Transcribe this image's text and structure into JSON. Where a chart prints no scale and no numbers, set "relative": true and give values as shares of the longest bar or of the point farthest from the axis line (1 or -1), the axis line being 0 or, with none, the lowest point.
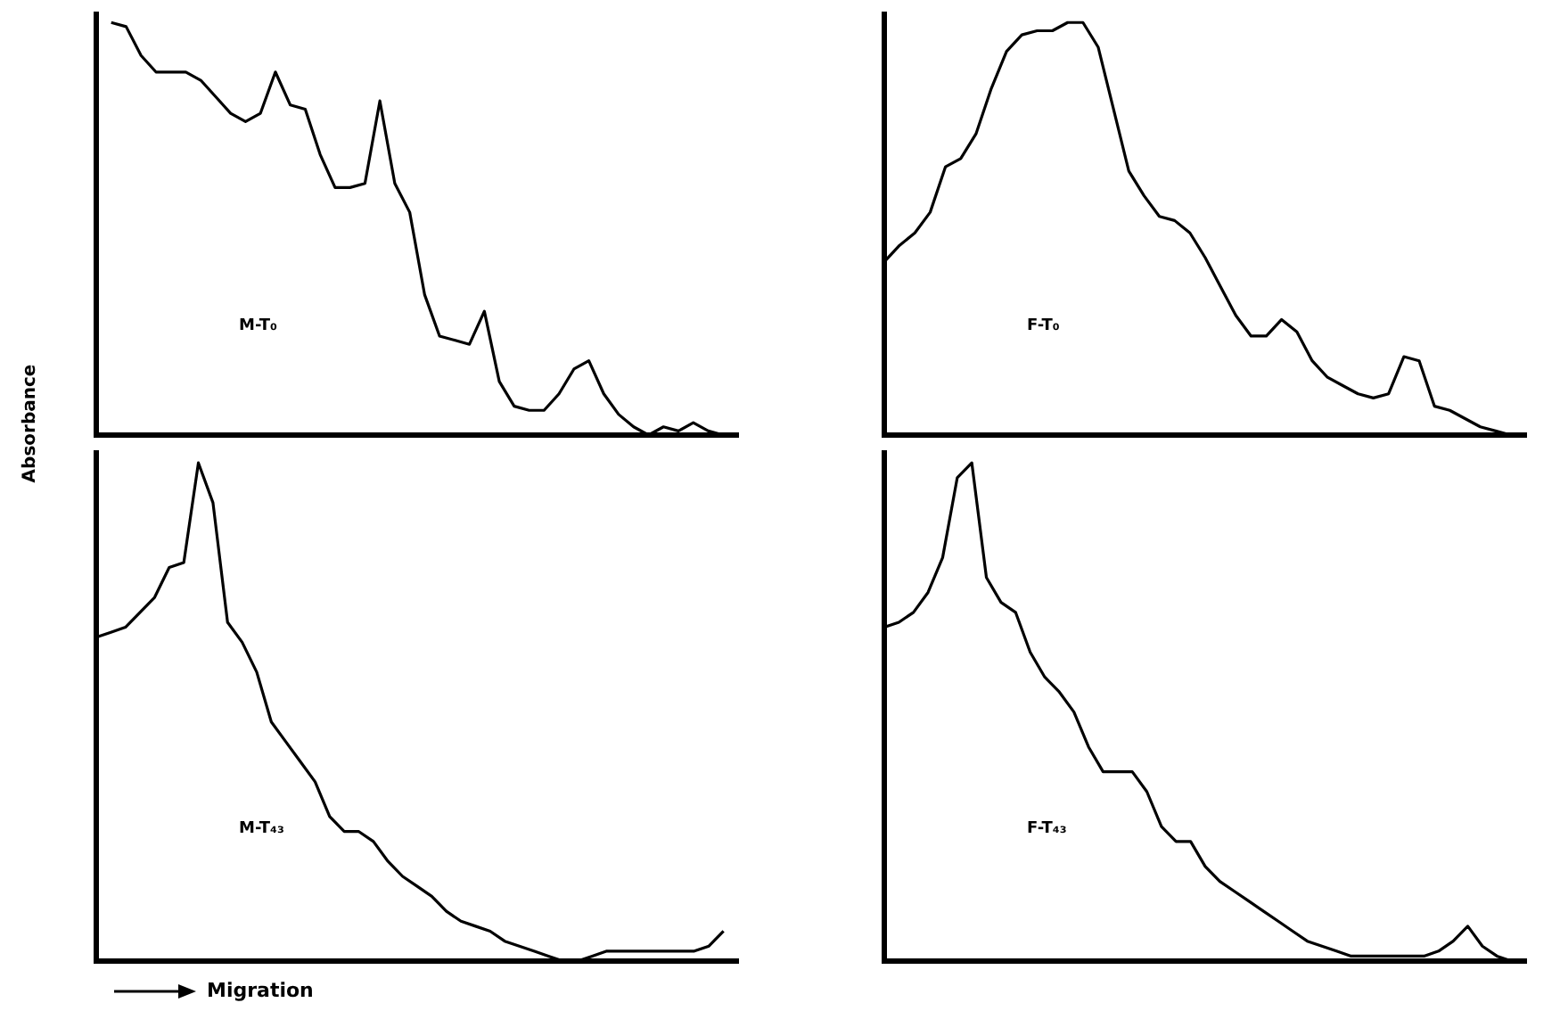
{
  "chart_data": [
    {
      "type": "line",
      "relative": true,
      "ylabel": "Absorbance",
      "tick_labels": false,
      "legend": false,
      "marker": "none",
      "annotations": [
        "M-T₀"
      ],
      "categories": [
        null,
        null,
        null,
        null,
        null,
        null,
        null,
        null,
        null,
        null,
        null,
        null,
        null,
        null,
        null,
        null,
        null,
        null,
        null,
        null,
        null,
        null,
        null,
        null,
        null,
        null,
        null,
        null,
        null,
        null,
        null,
        null,
        null,
        null,
        null,
        null,
        null,
        null,
        null,
        null,
        null,
        null,
        null,
        null
      ],
      "series": [
        {
          "color": "#000000",
          "values": [
            null,
            1.0,
            0.99,
            0.92,
            0.88,
            0.88,
            0.88,
            0.86,
            0.82,
            0.78,
            0.76,
            0.78,
            0.88,
            0.8,
            0.79,
            0.68,
            0.6,
            0.6,
            0.61,
            0.81,
            0.61,
            0.54,
            0.34,
            0.24,
            0.23,
            0.22,
            0.3,
            0.13,
            0.07,
            0.06,
            0.06,
            0.1,
            0.16,
            0.18,
            0.1,
            0.05,
            0.02,
            0.0,
            0.02,
            0.01,
            0.03,
            0.01,
            0.0,
            0
          ]
        }
      ]
    },
    {
      "type": "line",
      "relative": true,
      "tick_labels": false,
      "legend": false,
      "marker": "none",
      "annotations": [
        "F-T₀"
      ],
      "categories": [
        null,
        null,
        null,
        null,
        null,
        null,
        null,
        null,
        null,
        null,
        null,
        null,
        null,
        null,
        null,
        null,
        null,
        null,
        null,
        null,
        null,
        null,
        null,
        null,
        null,
        null,
        null,
        null,
        null,
        null,
        null,
        null,
        null,
        null,
        null,
        null,
        null,
        null,
        null,
        null,
        null,
        null,
        null
      ],
      "series": [
        {
          "color": "#000000",
          "values": [
            0.42,
            0.46,
            0.49,
            0.54,
            0.65,
            0.67,
            0.73,
            0.84,
            0.93,
            0.97,
            0.98,
            0.98,
            1.0,
            1.0,
            0.94,
            0.79,
            0.64,
            0.58,
            0.53,
            0.52,
            0.49,
            0.43,
            0.36,
            0.29,
            0.24,
            0.24,
            0.28,
            0.25,
            0.18,
            0.14,
            0.12,
            0.1,
            0.09,
            0.1,
            0.19,
            0.18,
            0.07,
            0.06,
            0.04,
            0.02,
            0.01,
            0.0,
            null
          ]
        }
      ]
    },
    {
      "type": "line",
      "relative": true,
      "xlabel": "Migration",
      "tick_labels": false,
      "legend": false,
      "marker": "none",
      "annotations": [
        "M-T₄₃"
      ],
      "categories": [
        null,
        null,
        null,
        null,
        null,
        null,
        null,
        null,
        null,
        null,
        null,
        null,
        null,
        null,
        null,
        null,
        null,
        null,
        null,
        null,
        null,
        null,
        null,
        null,
        null,
        null,
        null,
        null,
        null,
        null,
        null,
        null,
        null,
        null,
        null,
        null,
        null,
        null,
        null,
        null,
        null,
        null,
        null,
        null,
        null
      ],
      "series": [
        {
          "color": "#000000",
          "values": [
            0.65,
            0.66,
            0.67,
            0.7,
            0.73,
            0.79,
            0.8,
            1.0,
            0.92,
            0.68,
            0.64,
            0.58,
            0.48,
            0.44,
            0.4,
            0.36,
            0.29,
            0.26,
            0.26,
            0.24,
            0.2,
            0.17,
            0.15,
            0.13,
            0.1,
            0.08,
            0.07,
            0.06,
            0.04,
            0.03,
            0.02,
            0.01,
            0.0,
            0.0,
            0.01,
            0.02,
            0.02,
            0.02,
            0.02,
            0.02,
            0.02,
            0.02,
            0.03,
            0.06,
            null
          ]
        }
      ]
    },
    {
      "type": "line",
      "relative": true,
      "tick_labels": false,
      "legend": false,
      "marker": "none",
      "annotations": [
        "F-T₄₃"
      ],
      "categories": [
        null,
        null,
        null,
        null,
        null,
        null,
        null,
        null,
        null,
        null,
        null,
        null,
        null,
        null,
        null,
        null,
        null,
        null,
        null,
        null,
        null,
        null,
        null,
        null,
        null,
        null,
        null,
        null,
        null,
        null,
        null,
        null,
        null,
        null,
        null,
        null,
        null,
        null,
        null,
        null,
        null,
        null,
        null,
        null,
        null
      ],
      "series": [
        {
          "color": "#000000",
          "values": [
            0.67,
            0.68,
            0.7,
            0.74,
            0.81,
            0.97,
            1.0,
            0.77,
            0.72,
            0.7,
            0.62,
            0.57,
            0.54,
            0.5,
            0.43,
            0.38,
            0.38,
            0.38,
            0.34,
            0.27,
            0.24,
            0.24,
            0.19,
            0.16,
            0.14,
            0.12,
            0.1,
            0.08,
            0.06,
            0.04,
            0.03,
            0.02,
            0.01,
            0.01,
            0.01,
            0.01,
            0.01,
            0.01,
            0.02,
            0.04,
            0.07,
            0.03,
            0.01,
            0.0,
            null
          ]
        }
      ]
    }
  ]
}
